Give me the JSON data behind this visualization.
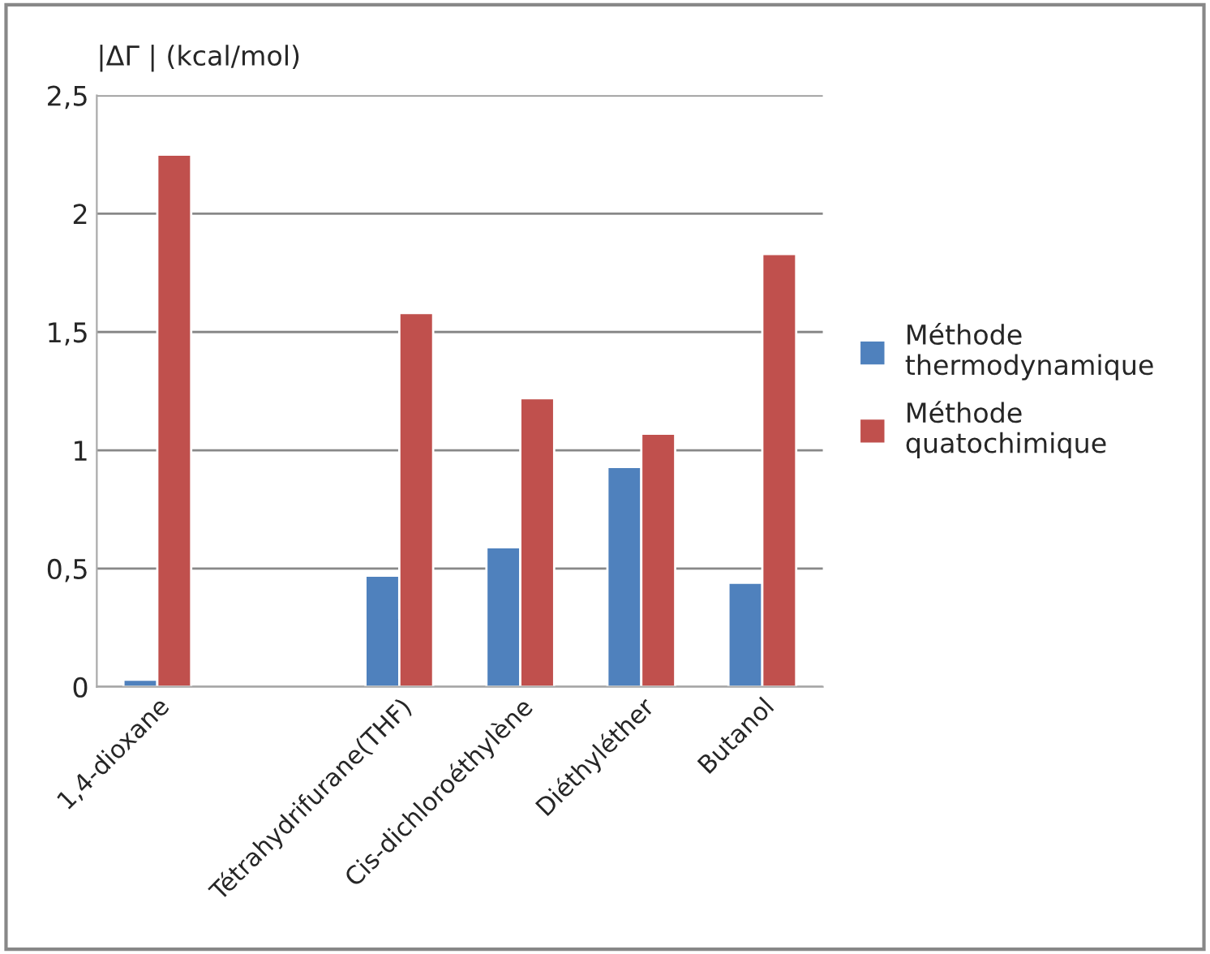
{
  "chart_data": {
    "type": "bar",
    "ylabel": "|ΔΓ | (kcal/mol)",
    "categories": [
      "1,4-dioxane",
      null,
      "Tétrahydrifurane(THF)",
      "Cis-dichloroéthylène",
      "Diéthyléther",
      "Butanol"
    ],
    "series": [
      {
        "name": "Méthode thermodynamique",
        "color": "#4f81bd",
        "values": [
          0.03,
          null,
          0.47,
          0.59,
          0.93,
          0.44
        ]
      },
      {
        "name": "Méthode quatochimique",
        "color": "#c0504d",
        "values": [
          2.25,
          null,
          1.58,
          1.22,
          1.07,
          1.83
        ]
      }
    ],
    "ylim": [
      0,
      2.5
    ],
    "yticks": [
      0,
      {
        "value": 0.5,
        "label": "0,5"
      },
      1,
      {
        "value": 1.5,
        "label": "1,5"
      },
      2,
      {
        "value": 2.5,
        "label": "2,5"
      }
    ],
    "grid": "y",
    "legend": "right"
  }
}
